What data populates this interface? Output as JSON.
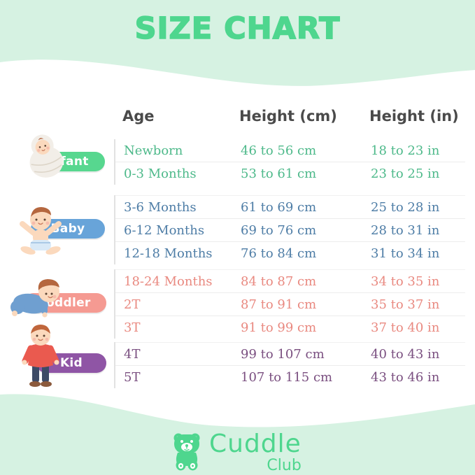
{
  "page": {
    "title": "SIZE CHART"
  },
  "colors": {
    "background_mint": "#d6f2e2",
    "title_green": "#4ed68e",
    "header_text": "#4a4a4a",
    "logo_green": "#4ed68e"
  },
  "chart_data": {
    "type": "table",
    "title": "SIZE CHART",
    "columns": [
      "Age",
      "Height (cm)",
      "Height (in)"
    ],
    "groups": [
      {
        "label": "Infant",
        "rows": [
          [
            "Newborn",
            "46 to 56 cm",
            "18 to 23 in"
          ],
          [
            "0-3 Months",
            "53 to 61 cm",
            "23 to 25 in"
          ]
        ]
      },
      {
        "label": "Baby",
        "rows": [
          [
            "3-6 Months",
            "61 to 69 cm",
            "25 to 28 in"
          ],
          [
            "6-12 Months",
            "69 to 76 cm",
            "28 to 31 in"
          ],
          [
            "12-18 Months",
            "76 to 84 cm",
            "31 to 34 in"
          ]
        ]
      },
      {
        "label": "Toddler",
        "rows": [
          [
            "18-24 Months",
            "84 to 87 cm",
            "34 to 35 in"
          ],
          [
            "2T",
            "87 to 91 cm",
            "35 to 37 in"
          ],
          [
            "3T",
            "91 to 99 cm",
            "37 to 40 in"
          ]
        ]
      },
      {
        "label": "Kid",
        "rows": [
          [
            "4T",
            "99 to 107 cm",
            "40 to 43 in"
          ],
          [
            "5T",
            "107 to 115 cm",
            "43 to 46 in"
          ]
        ]
      }
    ]
  },
  "table": {
    "headers": [
      "Age",
      "Height (cm)",
      "Height (in)"
    ],
    "groups": [
      {
        "label": "Infant",
        "pill_color": "#57d78f",
        "text_color": "#4db98a",
        "illustration": "swaddled-baby",
        "rows": [
          [
            "Newborn",
            "46 to 56 cm",
            "18 to 23 in"
          ],
          [
            "0-3 Months",
            "53 to 61 cm",
            "23 to 25 in"
          ]
        ]
      },
      {
        "label": "Baby",
        "pill_color": "#68a4d9",
        "text_color": "#4e7da6",
        "illustration": "sitting-baby-arms-up",
        "rows": [
          [
            "3-6 Months",
            "61 to 69 cm",
            "25 to 28 in"
          ],
          [
            "6-12 Months",
            "69 to 76 cm",
            "28 to 31 in"
          ],
          [
            "12-18 Months",
            "76 to 84 cm",
            "31 to 34 in"
          ]
        ]
      },
      {
        "label": "Toddler",
        "pill_color": "#f59a92",
        "text_color": "#e98980",
        "illustration": "crawling-toddler",
        "rows": [
          [
            "18-24 Months",
            "84 to 87 cm",
            "34 to 35 in"
          ],
          [
            "2T",
            "87 to 91 cm",
            "35 to 37 in"
          ],
          [
            "3T",
            "91 to 99 cm",
            "37 to 40 in"
          ]
        ]
      },
      {
        "label": "Kid",
        "pill_color": "#8f55a5",
        "text_color": "#7a4f80",
        "illustration": "standing-kid",
        "rows": [
          [
            "4T",
            "99 to 107 cm",
            "40 to 43 in"
          ],
          [
            "5T",
            "107 to 115 cm",
            "43 to 46 in"
          ]
        ]
      }
    ]
  },
  "footer": {
    "brand_icon": "teddy-bear-icon",
    "brand_line1": "Cuddle",
    "brand_line2": "Club"
  }
}
